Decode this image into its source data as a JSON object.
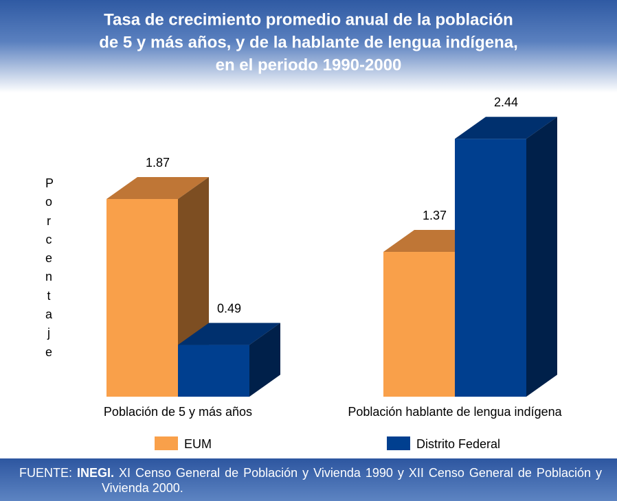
{
  "chart_data": {
    "type": "bar3d",
    "title": [
      "Tasa de crecimiento promedio anual de la población",
      "de 5 y más años, y de la hablante de lengua indígena,",
      "en el periodo 1990-2000"
    ],
    "y_label": "Porcentaje",
    "categories": [
      "Población de 5 y más años",
      "Población hablante de lengua indígena"
    ],
    "series": [
      {
        "name": "EUM",
        "color": "#F9A04A",
        "top_color": "#BF7636",
        "side_color": "#7D4E22",
        "values": [
          1.87,
          1.37
        ]
      },
      {
        "name": "Distrito Federal",
        "color": "#003F8F",
        "top_color": "#00306E",
        "side_color": "#00204A",
        "values": [
          0.49,
          2.44
        ]
      }
    ],
    "ylim": [
      0,
      2.5
    ]
  },
  "source": {
    "label": "FUENTE:",
    "org": "INEGI.",
    "text": "XI Censo General de Población y Vivienda 1990 y XII Censo General de Población y Vivienda 2000."
  }
}
